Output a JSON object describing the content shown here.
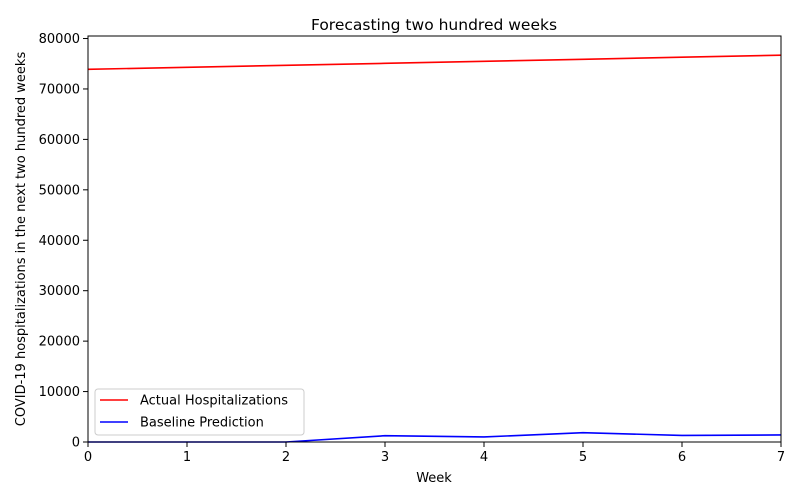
{
  "chart_data": {
    "type": "line",
    "title": "Forecasting two hundred weeks",
    "xlabel": "Week",
    "ylabel": "COVID-19 hospitalizations in the next two hundred weeks",
    "x": [
      0,
      1,
      2,
      3,
      4,
      5,
      6,
      7
    ],
    "xlim": [
      0,
      7
    ],
    "ylim": [
      0,
      80500
    ],
    "xticks": [
      0,
      1,
      2,
      3,
      4,
      5,
      6,
      7
    ],
    "yticks": [
      0,
      10000,
      20000,
      30000,
      40000,
      50000,
      60000,
      70000,
      80000
    ],
    "grid": false,
    "legend_position": "lower-left",
    "series": [
      {
        "name": "Actual Hospitalizations",
        "color": "#ff0000",
        "values": [
          73900,
          74290,
          74680,
          75080,
          75480,
          75880,
          76290,
          76700
        ]
      },
      {
        "name": "Baseline Prediction",
        "color": "#0000ff",
        "values": [
          0,
          0,
          0,
          1250,
          1000,
          1850,
          1300,
          1400
        ]
      }
    ]
  }
}
